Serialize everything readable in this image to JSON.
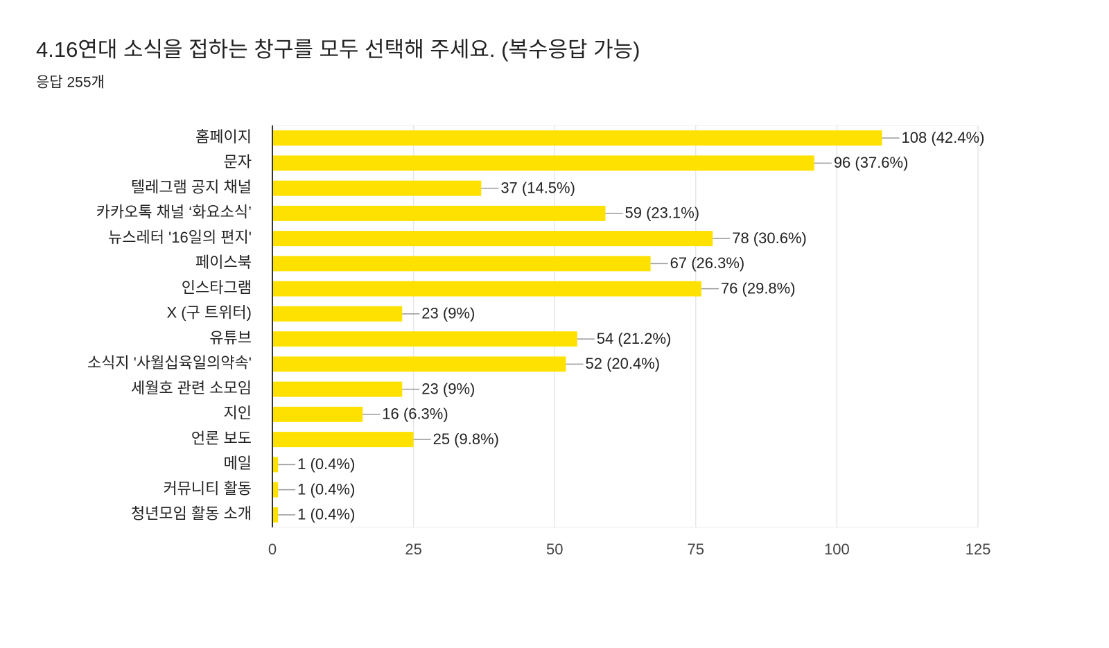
{
  "chart_data": {
    "type": "bar",
    "orientation": "horizontal",
    "title": "4.16연대 소식을 접하는 창구를 모두 선택해 주세요. (복수응답 가능)",
    "subtitle": "응답 255개",
    "categories": [
      "홈페이지",
      "문자",
      "텔레그램 공지 채널",
      "카카오톡 채널 ‘화요소식’",
      "뉴스레터 '16일의 편지'",
      "페이스북",
      "인스타그램",
      "X (구 트위터)",
      "유튜브",
      "소식지 '사월십육일의약속'",
      "세월호 관련 소모임",
      "지인",
      "언론 보도",
      "메일",
      "커뮤니티 활동",
      "청년모임 활동 소개"
    ],
    "values": [
      108,
      96,
      37,
      59,
      78,
      67,
      76,
      23,
      54,
      52,
      23,
      16,
      25,
      1,
      1,
      1
    ],
    "value_labels": [
      "108 (42.4%)",
      "96 (37.6%)",
      "37 (14.5%)",
      "59 (23.1%)",
      "78 (30.6%)",
      "67 (26.3%)",
      "76 (29.8%)",
      "23 (9%)",
      "54 (21.2%)",
      "52 (20.4%)",
      "23 (9%)",
      "16 (6.3%)",
      "25 (9.8%)",
      "1 (0.4%)",
      "1 (0.4%)",
      "1 (0.4%)"
    ],
    "color": "#ffe100",
    "xlim": [
      0,
      125
    ],
    "xticks": [
      0,
      25,
      50,
      75,
      100,
      125
    ],
    "grid": true
  }
}
